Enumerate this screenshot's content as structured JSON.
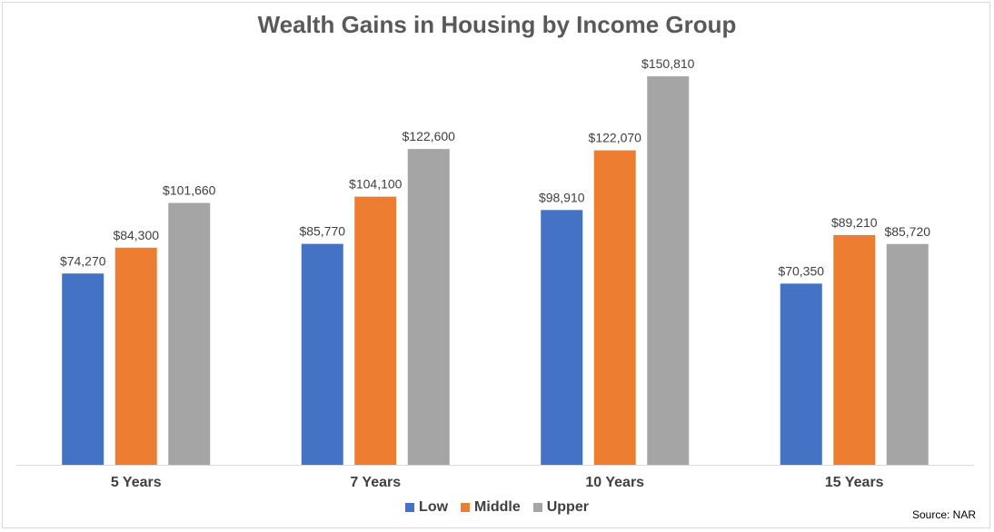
{
  "chart_data": {
    "type": "bar",
    "title": "Wealth Gains in Housing by Income Group",
    "categories": [
      "5 Years",
      "7 Years",
      "10 Years",
      "15 Years"
    ],
    "series": [
      {
        "name": "Low",
        "color": "#4472c4",
        "values": [
          74270,
          85770,
          98910,
          70350
        ],
        "labels": [
          "$74,270",
          "$85,770",
          "$98,910",
          "$70,350"
        ]
      },
      {
        "name": "Middle",
        "color": "#ed7d31",
        "values": [
          84300,
          104100,
          122070,
          89210
        ],
        "labels": [
          "$84,300",
          "$104,100",
          "$122,070",
          "$89,210"
        ]
      },
      {
        "name": "Upper",
        "color": "#a5a5a5",
        "values": [
          101660,
          122600,
          150810,
          85720
        ],
        "labels": [
          "$101,660",
          "$122,600",
          "$150,810",
          "$85,720"
        ]
      }
    ],
    "ylim": [
      0,
      160000
    ],
    "grid": false,
    "legend_position": "bottom",
    "source": "Source: NAR"
  }
}
